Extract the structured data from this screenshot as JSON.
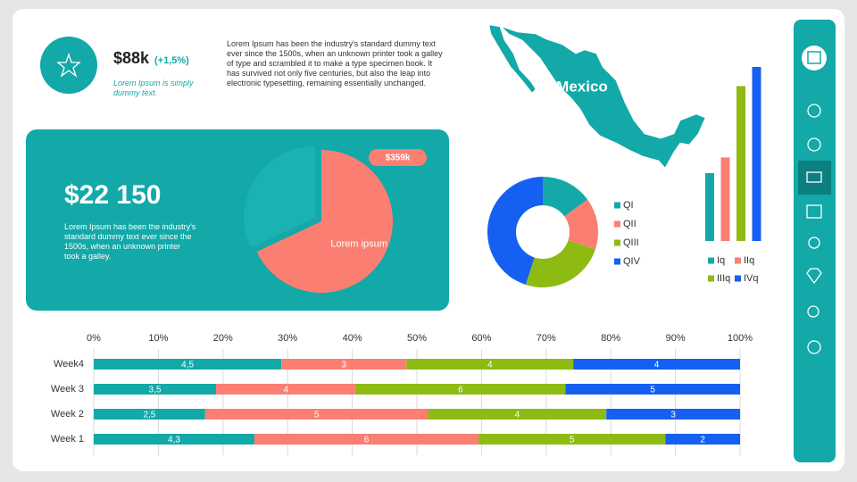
{
  "kpi": {
    "value": "$88k",
    "change": "(+1,5%)",
    "caption": "Lorem Ipsum is simply dummy text."
  },
  "intro_text": "Lorem Ipsum has been the industry's standard dummy text ever since the 1500s, when an unknown printer took a galley of type and scrambled it to make a type specimen book. It has survived not only five centuries, but also the leap into electronic typesetting, remaining essentially  unchanged.",
  "map_label": "Mexico",
  "highlight": {
    "value": "$22 150",
    "text": "Lorem Ipsum has been the industry's standard dummy text ever since the 1500s, when an unknown printer took a galley."
  },
  "chart_data": [
    {
      "type": "pie",
      "values": [
        68,
        32
      ],
      "colors": [
        "#fa7f72",
        "#1bb3b2"
      ],
      "labels": [
        "Lorem ipsum",
        null
      ],
      "badge": "$359k",
      "exploded": [
        false,
        true
      ]
    },
    {
      "type": "donut",
      "categories": [
        "QI",
        "QII",
        "QIII",
        "QIV"
      ],
      "values": [
        15,
        15,
        25,
        45
      ],
      "colors": [
        "#12a9a8",
        "#fa7f72",
        "#8dbb12",
        "#1560f2"
      ]
    },
    {
      "type": "bar",
      "categories": [
        "Iq",
        "IIq",
        "IIIq",
        "IVq"
      ],
      "values": [
        39,
        48,
        89,
        100
      ],
      "colors": [
        "#12a9a8",
        "#fa7f72",
        "#8dbb12",
        "#1560f2"
      ],
      "ylim": [
        0,
        100
      ]
    },
    {
      "type": "stacked_hbar",
      "categories": [
        "Week 1",
        "Week 2",
        "Week 3",
        "Week4"
      ],
      "series": [
        {
          "color": "#12a9a8",
          "values": [
            4.3,
            2.5,
            3.5,
            4.5
          ],
          "value_labels": [
            "4,3",
            "2,5",
            "3,5",
            "4,5"
          ]
        },
        {
          "color": "#fa7f72",
          "values": [
            6,
            5,
            4,
            3
          ]
        },
        {
          "color": "#8dbb12",
          "values": [
            5,
            4,
            6,
            4
          ]
        },
        {
          "color": "#1560f2",
          "values": [
            2,
            3,
            5,
            4
          ]
        }
      ],
      "xlim": [
        0,
        100
      ],
      "xticks": [
        {
          "value": 0,
          "label": "0%"
        },
        {
          "value": 10,
          "label": "10%"
        },
        {
          "value": 20,
          "label": "20%"
        },
        {
          "value": 30,
          "label": "30%"
        },
        {
          "value": 40,
          "label": "40%"
        },
        {
          "value": 50,
          "label": "50%"
        },
        {
          "value": 60,
          "label": "60%"
        },
        {
          "value": 70,
          "label": "70%"
        },
        {
          "value": 80,
          "label": "80%"
        },
        {
          "value": 90,
          "label": "90%"
        },
        {
          "value": 100,
          "label": "100%"
        }
      ],
      "grid": true
    }
  ]
}
